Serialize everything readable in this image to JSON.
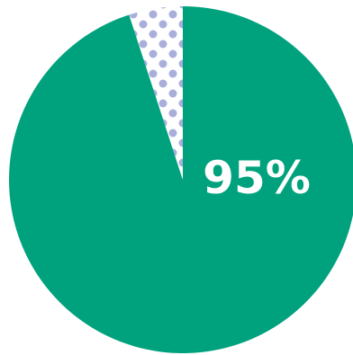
{
  "chart_data": {
    "type": "pie",
    "title": "",
    "slices": [
      {
        "label": "",
        "value": 95,
        "color": "#00a27d",
        "pattern": "solid"
      },
      {
        "label": "",
        "value": 5,
        "color": "#a9aedb",
        "pattern": "dots"
      }
    ],
    "data_labels": [
      {
        "text": "95%"
      }
    ]
  }
}
